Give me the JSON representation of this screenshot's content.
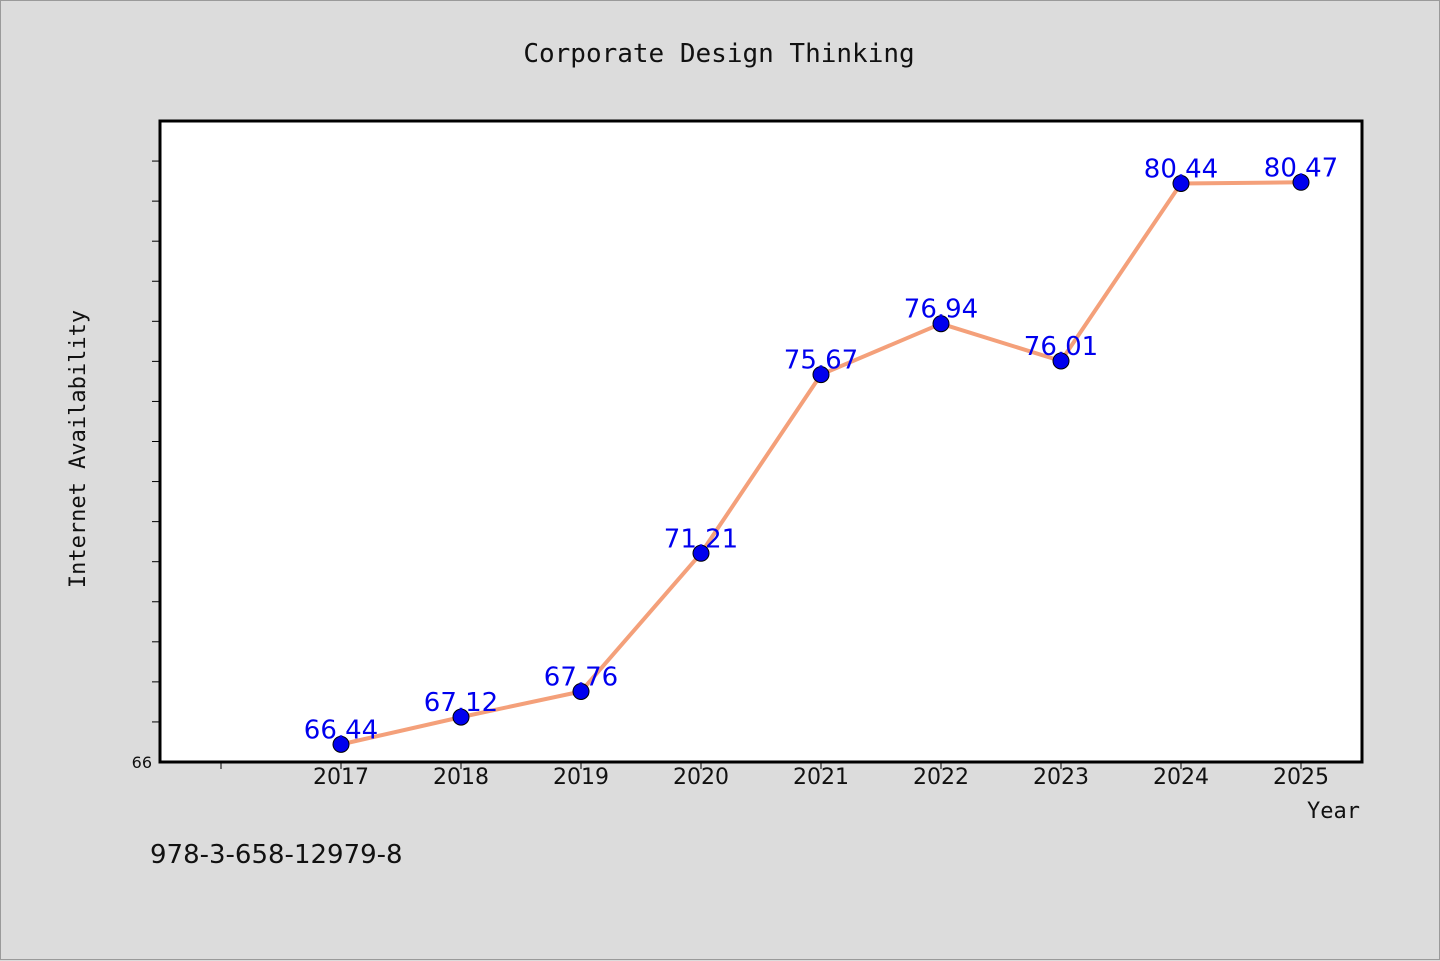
{
  "footer_code": "978-3-658-12979-8",
  "colors": {
    "background": "#dcdcdc",
    "plot_background": "#ffffff",
    "line": "#f4a07a",
    "marker": "#0000ee",
    "label": "#0000ee"
  },
  "chart_data": {
    "type": "line",
    "title": "Corporate Design Thinking",
    "xlabel": "Year",
    "ylabel": "Internet Availability",
    "categories": [
      "2017",
      "2018",
      "2019",
      "2020",
      "2021",
      "2022",
      "2023",
      "2024",
      "2025"
    ],
    "series": [
      {
        "values": [
          66.44,
          67.12,
          67.76,
          71.21,
          75.67,
          76.94,
          76.01,
          80.44,
          80.47
        ]
      }
    ],
    "ylim": [
      66,
      82
    ],
    "yticks_labeled": [
      "66"
    ],
    "grid": false,
    "legend": "none"
  }
}
